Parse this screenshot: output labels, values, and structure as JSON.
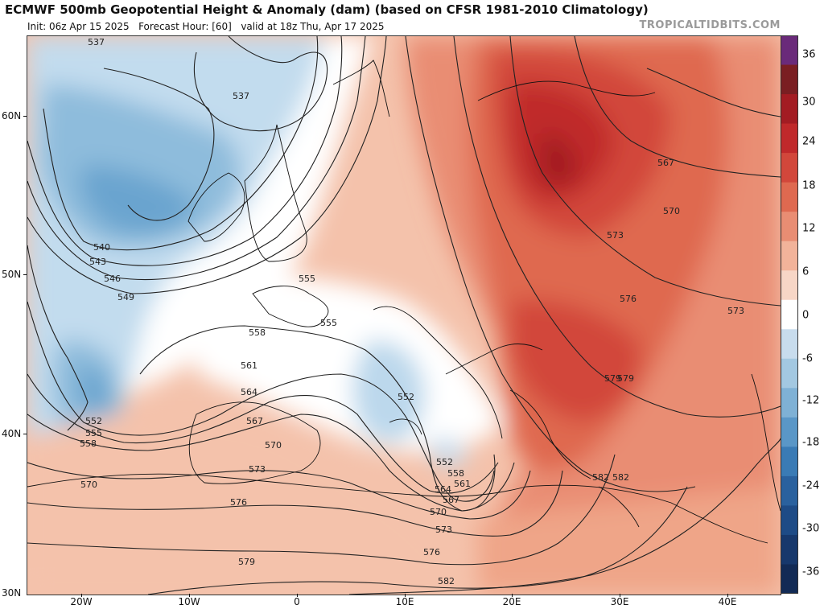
{
  "header": {
    "title": "ECMWF 500mb Geopotential Height & Anomaly (dam) (based on CFSR 1981-2010 Climatology)",
    "init": "Init: 06z Apr 15 2025",
    "forecast_hour": "Forecast Hour: [60]",
    "valid": "valid at 18z Thu, Apr 17 2025",
    "brand": "TROPICALTIDBITS.COM"
  },
  "axes": {
    "lat_ticks": [
      "60N",
      "50N",
      "40N",
      "30N"
    ],
    "lon_ticks": [
      "20W",
      "10W",
      "0",
      "10E",
      "20E",
      "30E",
      "40E"
    ]
  },
  "colorbar": {
    "labels": [
      "36",
      "30",
      "24",
      "18",
      "12",
      "6",
      "0",
      "-6",
      "-12",
      "-18",
      "-24",
      "-30",
      "-36"
    ],
    "colors": [
      "#6a2a7a",
      "#7a1e22",
      "#a31c23",
      "#c0292b",
      "#d2473b",
      "#df6950",
      "#e98d73",
      "#f2b39a",
      "#f7d6c6",
      "#ffffff",
      "#c8dced",
      "#a3c8e1",
      "#7fb1d5",
      "#5a97c7",
      "#3a7bb5",
      "#2a619e",
      "#1e4b86",
      "#17386c",
      "#122a55"
    ]
  },
  "contour_labels": [
    "537",
    "537",
    "540",
    "543",
    "546",
    "549",
    "552",
    "555",
    "558",
    "552",
    "555",
    "555",
    "558",
    "561",
    "564",
    "567",
    "570",
    "570",
    "573",
    "576",
    "579",
    "582",
    "552",
    "558",
    "561",
    "564",
    "567",
    "570",
    "573",
    "576",
    "579",
    "582",
    "567",
    "570",
    "573",
    "576",
    "579",
    "582",
    "573"
  ]
}
